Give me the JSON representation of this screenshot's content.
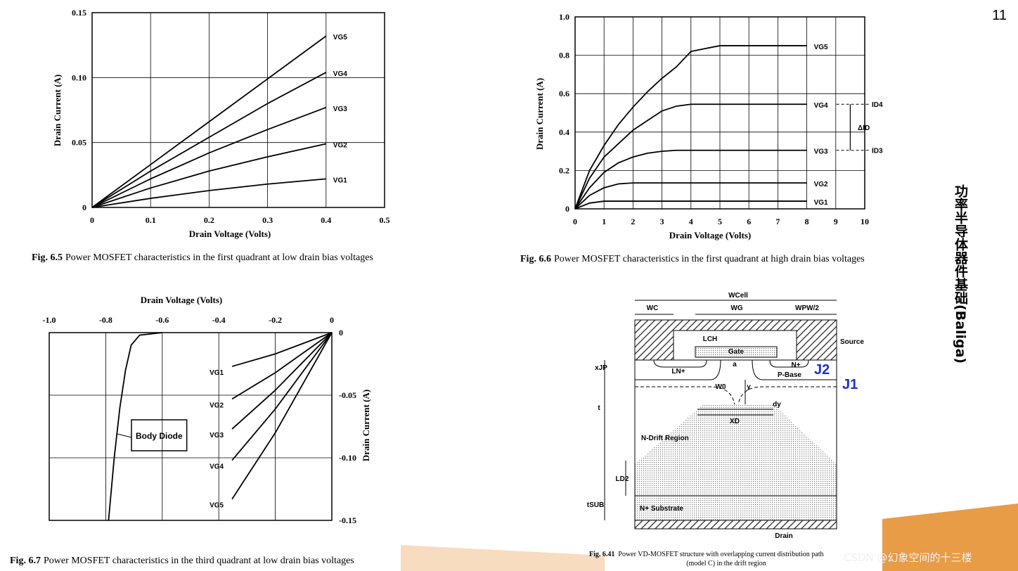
{
  "page_number": "11",
  "side_title": "功率半导体器件基础(Baliga)",
  "watermark": "CSDN @幻象空间的十三楼",
  "chart_data": [
    {
      "type": "line",
      "fig": "Fig. 6.5",
      "caption": "Power MOSFET characteristics in the first quadrant at low drain bias voltages",
      "x_label": "Drain Voltage   (Volts)",
      "y_label": "Drain Current  (A)",
      "xlim": [
        0,
        0.5
      ],
      "xticks": [
        0,
        0.1,
        0.2,
        0.3,
        0.4,
        0.5
      ],
      "ylim": [
        0,
        0.15
      ],
      "yticks": [
        0,
        0.05,
        {
          "value": 0.1,
          "label": "0.10"
        },
        0.15
      ],
      "grid": true,
      "series": [
        {
          "name": "VG5",
          "color": "#000000",
          "x": [
            0,
            0.1,
            0.2,
            0.3,
            0.4
          ],
          "values": [
            0,
            0.033,
            0.066,
            0.099,
            0.132
          ]
        },
        {
          "name": "VG4",
          "color": "#000000",
          "x": [
            0,
            0.1,
            0.2,
            0.3,
            0.4
          ],
          "values": [
            0,
            0.028,
            0.054,
            0.08,
            0.104
          ]
        },
        {
          "name": "VG3",
          "color": "#000000",
          "x": [
            0,
            0.1,
            0.2,
            0.3,
            0.4
          ],
          "values": [
            0,
            0.022,
            0.042,
            0.06,
            0.077
          ]
        },
        {
          "name": "VG2",
          "color": "#000000",
          "x": [
            0,
            0.1,
            0.2,
            0.3,
            0.4
          ],
          "values": [
            0,
            0.015,
            0.028,
            0.039,
            0.049
          ]
        },
        {
          "name": "VG1",
          "color": "#000000",
          "x": [
            0,
            0.1,
            0.2,
            0.3,
            0.4
          ],
          "values": [
            0,
            0.007,
            0.013,
            0.018,
            0.022
          ]
        }
      ]
    },
    {
      "type": "line",
      "fig": "Fig. 6.6",
      "caption": "Power MOSFET characteristics in the first quadrant at high drain bias voltages",
      "x_label": "Drain Voltage   (Volts)",
      "y_label": "Drain Current  (A)",
      "xlim": [
        0,
        10
      ],
      "xticks": [
        0,
        1,
        2,
        3,
        4,
        5,
        6,
        7,
        8,
        9,
        10
      ],
      "ylim": [
        0,
        1
      ],
      "yticks": [
        0,
        0.2,
        0.4,
        0.6,
        0.8,
        {
          "value": 1,
          "label": "1.0"
        }
      ],
      "grid": true,
      "series": [
        {
          "name": "VG5",
          "color": "#000000",
          "x": [
            0,
            0.5,
            1,
            1.5,
            2,
            2.5,
            3,
            3.5,
            4,
            5,
            8
          ],
          "values": [
            0,
            0.2,
            0.33,
            0.44,
            0.53,
            0.61,
            0.68,
            0.74,
            0.82,
            0.85,
            0.85
          ]
        },
        {
          "name": "VG4",
          "color": "#000000",
          "x": [
            0,
            0.5,
            1,
            1.5,
            2,
            2.5,
            3,
            3.5,
            4,
            5,
            8
          ],
          "values": [
            0,
            0.16,
            0.27,
            0.34,
            0.41,
            0.46,
            0.51,
            0.535,
            0.545,
            0.545,
            0.545
          ]
        },
        {
          "name": "VG3",
          "color": "#000000",
          "x": [
            0,
            0.5,
            1,
            1.5,
            2,
            2.5,
            3,
            3.5,
            4,
            5,
            8
          ],
          "values": [
            0,
            0.11,
            0.19,
            0.24,
            0.27,
            0.29,
            0.3,
            0.305,
            0.305,
            0.305,
            0.305
          ]
        },
        {
          "name": "VG2",
          "color": "#000000",
          "x": [
            0,
            0.5,
            1,
            1.5,
            2,
            3,
            8
          ],
          "values": [
            0,
            0.07,
            0.11,
            0.13,
            0.135,
            0.135,
            0.135
          ]
        },
        {
          "name": "VG1",
          "color": "#000000",
          "x": [
            0,
            0.5,
            1,
            8
          ],
          "values": [
            0,
            0.03,
            0.04,
            0.04
          ]
        }
      ],
      "annotations": [
        {
          "text": "ID4",
          "y": 0.545
        },
        {
          "text": "ΔID",
          "y": 0.425
        },
        {
          "text": "ID3",
          "y": 0.305
        }
      ]
    },
    {
      "type": "line",
      "fig": "Fig. 6.7",
      "caption": "Power MOSFET characteristics in the third quadrant at low drain bias voltages",
      "x_label": "Drain Voltage   (Volts)",
      "y_label": "Drain Current  (A)",
      "xlim": [
        -1,
        0
      ],
      "xticks": [
        {
          "value": -1,
          "label": "-1.0"
        },
        -0.8,
        -0.6,
        -0.4,
        -0.2,
        0
      ],
      "ylim": [
        -0.15,
        0
      ],
      "yticks": [
        0,
        -0.05,
        {
          "value": -0.1,
          "label": "-0.10"
        },
        -0.15
      ],
      "grid": true,
      "series": [
        {
          "name": "VG1",
          "color": "#000000",
          "x": [
            -0.353,
            -0.2,
            0
          ],
          "values": [
            -0.027,
            -0.017,
            0
          ]
        },
        {
          "name": "VG2",
          "color": "#000000",
          "x": [
            -0.353,
            -0.2,
            0
          ],
          "values": [
            -0.053,
            -0.032,
            0
          ]
        },
        {
          "name": "VG3",
          "color": "#000000",
          "x": [
            -0.353,
            -0.2,
            0
          ],
          "values": [
            -0.077,
            -0.046,
            0
          ]
        },
        {
          "name": "VG4",
          "color": "#000000",
          "x": [
            -0.353,
            -0.2,
            0
          ],
          "values": [
            -0.102,
            -0.061,
            0
          ]
        },
        {
          "name": "VG5",
          "color": "#000000",
          "x": [
            -0.353,
            -0.2,
            0
          ],
          "values": [
            -0.133,
            -0.08,
            0
          ]
        },
        {
          "name": "Body Diode",
          "color": "#000000",
          "x": [
            -0.79,
            -0.77,
            -0.75,
            -0.73,
            -0.71,
            -0.68,
            -0.6
          ],
          "values": [
            -0.15,
            -0.1,
            -0.06,
            -0.03,
            -0.01,
            -0.002,
            0
          ]
        }
      ]
    }
  ],
  "diagram": {
    "fig": "Fig. 6.41",
    "caption": [
      "Power VD-MOSFET structure with overlapping current distribution path",
      "(model C) in the drift region"
    ],
    "labels": [
      "WCell",
      "WC",
      "WG",
      "WPW/2",
      "LCH",
      "Gate",
      "a",
      "LN+",
      "N+",
      "P-Base",
      "W0",
      "y",
      "Source",
      "xJP",
      "t",
      "dy",
      "XD",
      "N-Drift Region",
      "LD2",
      "tSUB",
      "N+ Substrate",
      "Drain",
      "J2",
      "J1"
    ]
  }
}
